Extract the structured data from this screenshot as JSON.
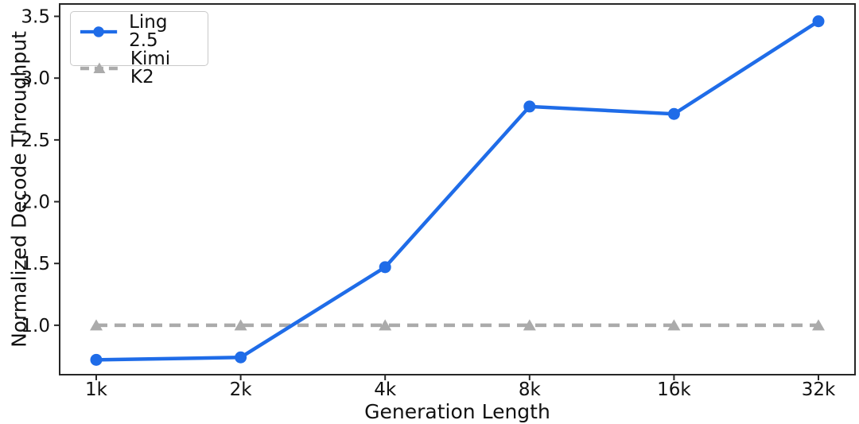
{
  "figure": {
    "background": "#ffffff",
    "axis_color": "#262626",
    "text_color": "#111111"
  },
  "chart_data": {
    "type": "line",
    "title": "",
    "xlabel": "Generation Length",
    "ylabel": "Normalized Decode Throughput",
    "categories": [
      "1k",
      "2k",
      "4k",
      "8k",
      "16k",
      "32k"
    ],
    "series": [
      {
        "name": "Ling 2.5",
        "values": [
          0.72,
          0.74,
          1.47,
          2.77,
          2.71,
          3.46
        ],
        "color": "#1f6ce8",
        "line_style": "solid",
        "marker": "circle"
      },
      {
        "name": "Kimi K2",
        "values": [
          1.0,
          1.0,
          1.0,
          1.0,
          1.0,
          1.0
        ],
        "color": "#ababab",
        "line_style": "dashed",
        "marker": "triangle-up"
      }
    ],
    "y_ticks": [
      "1.0",
      "1.5",
      "2.0",
      "2.5",
      "3.0",
      "3.5"
    ],
    "ylim": [
      0.6,
      3.6
    ],
    "legend_position": "upper-left",
    "grid": false
  }
}
